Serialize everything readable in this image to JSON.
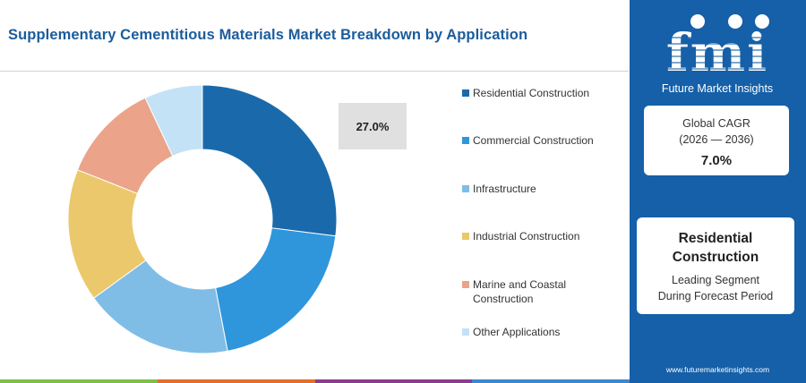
{
  "title": "Supplementary Cementitious Materials Market Breakdown by Application",
  "chart_data": {
    "type": "pie",
    "subtype": "donut",
    "title": "Supplementary Cementitious Materials Market Breakdown by Application",
    "categories": [
      "Residential Construction",
      "Commercial Construction",
      "Infrastructure",
      "Industrial Construction",
      "Marine and Coastal Construction",
      "Other Applications"
    ],
    "values": [
      27.0,
      20.0,
      18.0,
      16.0,
      12.0,
      7.0
    ],
    "colors": [
      "#1a6aab",
      "#2f96dc",
      "#7fbde6",
      "#ebc86b",
      "#eba38a",
      "#c4e2f6"
    ],
    "highlight_label": "27.0%",
    "legend_position": "right"
  },
  "sidebar": {
    "logo_text": "fmi",
    "logo_tagline": "Future Market Insights",
    "cagr_label_line1": "Global CAGR",
    "cagr_label_line2": "(2026 — 2036)",
    "cagr_value": "7.0%",
    "leading_segment_line1": "Residential",
    "leading_segment_line2": "Construction",
    "leading_caption_line1": "Leading Segment",
    "leading_caption_line2": "During Forecast Period",
    "website": "www.futuremarketinsights.com"
  },
  "bottom_bar_colors": [
    "#7cbf4a",
    "#e36f2c",
    "#8a3c8f",
    "#3a88cf"
  ]
}
